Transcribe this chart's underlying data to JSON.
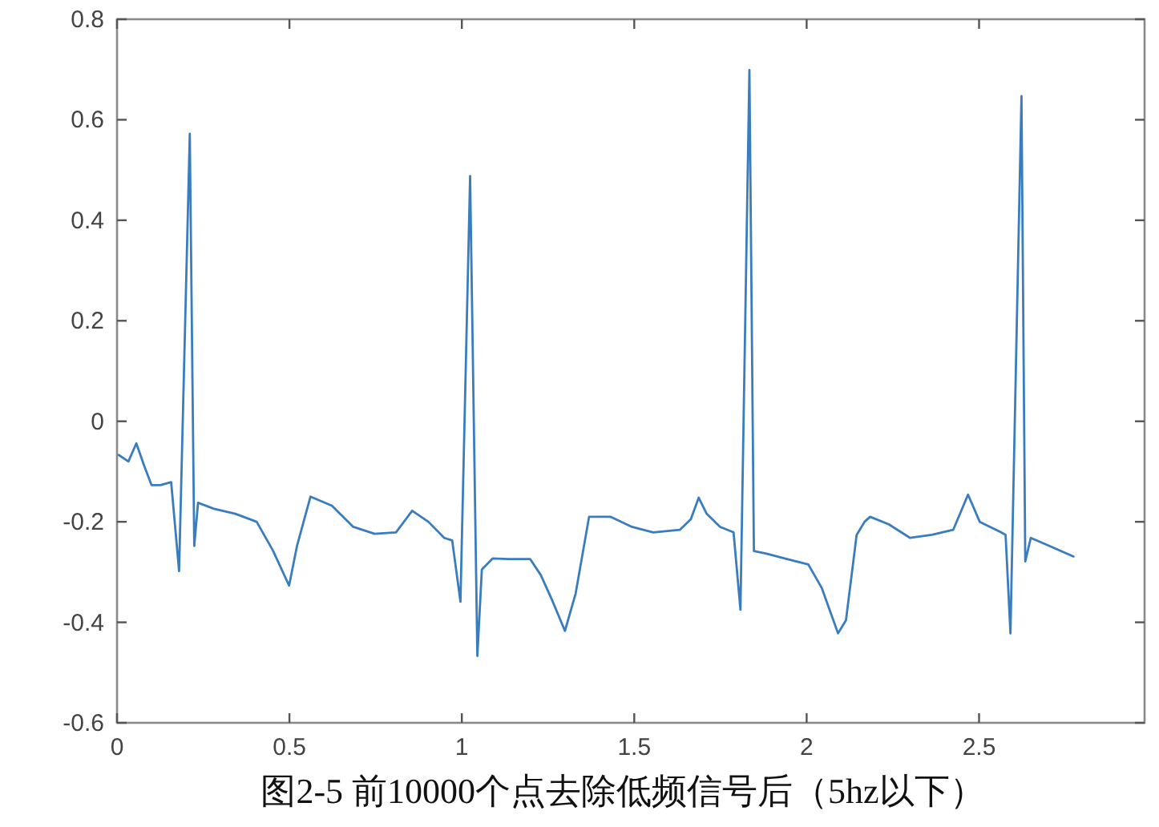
{
  "chart_data": {
    "type": "line",
    "title": "图2-5 前10000个点去除低频信号后（5hz以下）",
    "xlim": [
      0,
      2.98
    ],
    "xticks": [
      0,
      0.5,
      1,
      1.5,
      2,
      2.5
    ],
    "ylim": [
      -0.6,
      0.8
    ],
    "yticks": [
      -0.6,
      -0.4,
      -0.2,
      0,
      0.2,
      0.4,
      0.6,
      0.8
    ],
    "series": [
      {
        "color": "#3a7dbf",
        "x": [
          0.005,
          0.033,
          0.056,
          0.079,
          0.1,
          0.126,
          0.157,
          0.18,
          0.211,
          0.224,
          0.235,
          0.281,
          0.343,
          0.405,
          0.452,
          0.499,
          0.522,
          0.561,
          0.623,
          0.685,
          0.747,
          0.809,
          0.856,
          0.903,
          0.949,
          0.972,
          0.996,
          1.024,
          1.045,
          1.058,
          1.089,
          1.135,
          1.198,
          1.229,
          1.26,
          1.299,
          1.33,
          1.369,
          1.431,
          1.493,
          1.555,
          1.632,
          1.664,
          1.687,
          1.71,
          1.749,
          1.788,
          1.808,
          1.834,
          1.847,
          1.881,
          1.943,
          2.005,
          2.044,
          2.091,
          2.114,
          2.145,
          2.168,
          2.184,
          2.238,
          2.3,
          2.363,
          2.425,
          2.468,
          2.502,
          2.564,
          2.577,
          2.591,
          2.623,
          2.634,
          2.65,
          2.704,
          2.774
        ],
        "values": [
          -0.067,
          -0.08,
          -0.044,
          -0.089,
          -0.127,
          -0.127,
          -0.121,
          -0.298,
          0.572,
          -0.248,
          -0.162,
          -0.174,
          -0.184,
          -0.2,
          -0.257,
          -0.327,
          -0.248,
          -0.15,
          -0.168,
          -0.21,
          -0.224,
          -0.221,
          -0.178,
          -0.2,
          -0.232,
          -0.237,
          -0.359,
          0.488,
          -0.467,
          -0.295,
          -0.273,
          -0.274,
          -0.274,
          -0.306,
          -0.353,
          -0.417,
          -0.343,
          -0.19,
          -0.19,
          -0.21,
          -0.221,
          -0.216,
          -0.195,
          -0.152,
          -0.184,
          -0.21,
          -0.221,
          -0.375,
          0.699,
          -0.258,
          -0.263,
          -0.274,
          -0.285,
          -0.332,
          -0.422,
          -0.396,
          -0.226,
          -0.2,
          -0.19,
          -0.205,
          -0.232,
          -0.226,
          -0.216,
          -0.146,
          -0.2,
          -0.221,
          -0.226,
          -0.422,
          0.647,
          -0.279,
          -0.232,
          -0.248,
          -0.269
        ]
      }
    ]
  }
}
